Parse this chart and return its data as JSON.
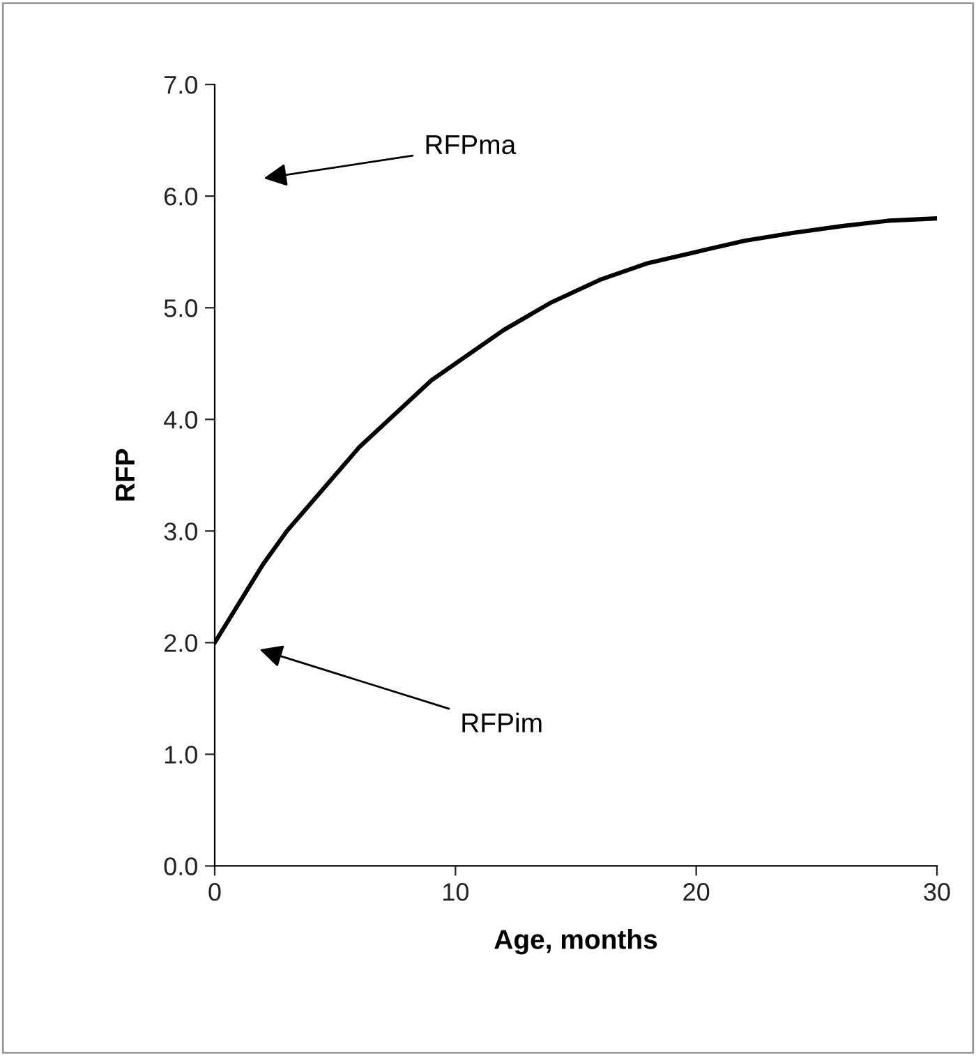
{
  "chart_data": {
    "type": "line",
    "xlabel": "Age, months",
    "ylabel": "RFP",
    "x": [
      0,
      1,
      2,
      3,
      4,
      5,
      6,
      7,
      8,
      9,
      10,
      12,
      14,
      16,
      18,
      20,
      22,
      24,
      26,
      28,
      30
    ],
    "series": [
      {
        "color": "#000000",
        "values": [
          2.0,
          2.35,
          2.7,
          3.0,
          3.25,
          3.5,
          3.75,
          3.95,
          4.15,
          4.35,
          4.5,
          4.8,
          5.05,
          5.25,
          5.4,
          5.5,
          5.6,
          5.67,
          5.73,
          5.78,
          5.8
        ]
      }
    ],
    "xlim": [
      0,
      30
    ],
    "xticks": [
      0,
      10,
      20,
      30
    ],
    "ylim": [
      0,
      7
    ],
    "yticks": [
      {
        "value": 0,
        "label": "0.0"
      },
      {
        "value": 1,
        "label": "1.0"
      },
      {
        "value": 2,
        "label": "2.0"
      },
      {
        "value": 3,
        "label": "3.0"
      },
      {
        "value": 4,
        "label": "4.0"
      },
      {
        "value": 5,
        "label": "5.0"
      },
      {
        "value": 6,
        "label": "6.0"
      },
      {
        "value": 7,
        "label": "7.0"
      }
    ],
    "annotations": [
      "RFPma",
      "RFPim"
    ],
    "grid": false,
    "legend": false,
    "marker": "none",
    "line_style": "solid"
  }
}
